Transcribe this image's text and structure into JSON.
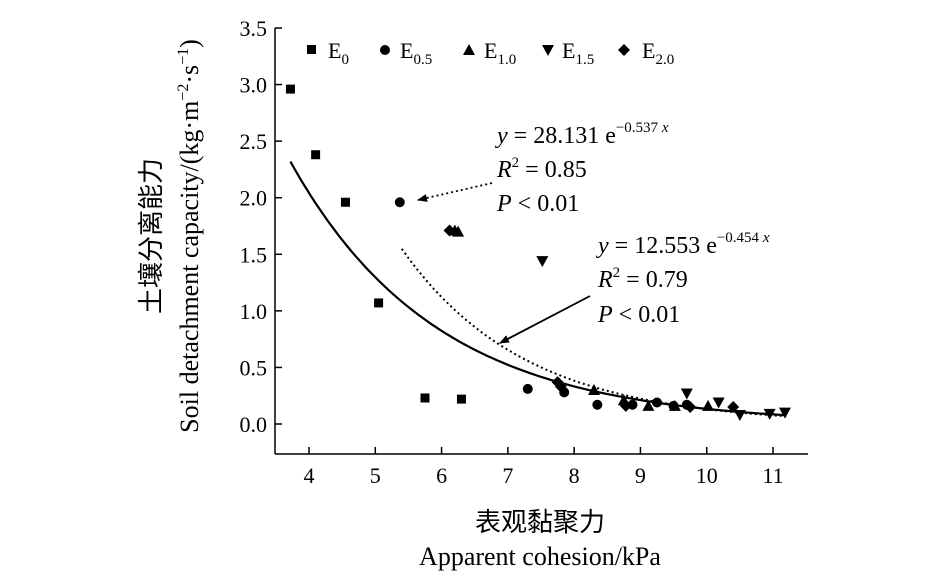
{
  "chart_data": {
    "type": "scatter",
    "xlabel_cn": "表观黏聚力",
    "xlabel_en": "Apparent cohesion/kPa",
    "ylabel_cn": "土壤分离能力",
    "ylabel_en_main": "Soil detachment capacity/(kg·m",
    "ylabel_en_sup1": "−2",
    "ylabel_en_mid": "·s",
    "ylabel_en_sup2": "−1",
    "ylabel_en_end": ")",
    "xlim": [
      3.5,
      11.5
    ],
    "ylim": [
      -0.25,
      3.5
    ],
    "x_ticks": [
      "4",
      "5",
      "6",
      "7",
      "8",
      "9",
      "10",
      "11"
    ],
    "y_ticks": [
      "0.0",
      "0.5",
      "1.0",
      "1.5",
      "2.0",
      "2.5",
      "3.0",
      "3.5"
    ],
    "legend": [
      {
        "base": "E",
        "sub": "0"
      },
      {
        "base": "E",
        "sub": "0.5"
      },
      {
        "base": "E",
        "sub": "1.0"
      },
      {
        "base": "E",
        "sub": "1.5"
      },
      {
        "base": "E",
        "sub": "2.0"
      }
    ],
    "series": [
      {
        "name": "E0",
        "marker": "square",
        "points": [
          [
            3.72,
            2.96
          ],
          [
            4.1,
            2.38
          ],
          [
            4.55,
            1.96
          ],
          [
            5.05,
            1.07
          ],
          [
            5.75,
            0.23
          ],
          [
            6.3,
            0.22
          ]
        ]
      },
      {
        "name": "E0.5",
        "marker": "circle",
        "points": [
          [
            5.37,
            1.96
          ],
          [
            7.3,
            0.31
          ],
          [
            7.85,
            0.28
          ],
          [
            8.35,
            0.17
          ],
          [
            8.88,
            0.17
          ],
          [
            9.25,
            0.19
          ],
          [
            9.5,
            0.16
          ],
          [
            9.7,
            0.17
          ]
        ]
      },
      {
        "name": "E1.0",
        "marker": "triangle-up",
        "points": [
          [
            6.2,
            1.71
          ],
          [
            6.25,
            1.7
          ],
          [
            8.3,
            0.3
          ],
          [
            8.75,
            0.21
          ],
          [
            9.12,
            0.16
          ],
          [
            9.52,
            0.16
          ],
          [
            10.02,
            0.16
          ]
        ]
      },
      {
        "name": "E1.5",
        "marker": "triangle-down",
        "points": [
          [
            7.52,
            1.44
          ],
          [
            9.7,
            0.27
          ],
          [
            10.18,
            0.19
          ],
          [
            10.5,
            0.08
          ],
          [
            10.95,
            0.09
          ],
          [
            11.18,
            0.1
          ]
        ]
      },
      {
        "name": "E2.0",
        "marker": "diamond",
        "points": [
          [
            6.12,
            1.71
          ],
          [
            7.75,
            0.37
          ],
          [
            7.8,
            0.33
          ],
          [
            8.78,
            0.16
          ],
          [
            9.75,
            0.15
          ],
          [
            10.4,
            0.15
          ]
        ]
      }
    ],
    "fits": [
      {
        "name": "dotted-fit",
        "style": "dotted",
        "a": 28.131,
        "b": -0.537,
        "x_range": [
          5.4,
          11.2
        ]
      },
      {
        "name": "solid-fit",
        "style": "solid",
        "a": 12.553,
        "b": -0.454,
        "x_range": [
          3.72,
          11.2
        ]
      }
    ],
    "annotations": [
      {
        "y_prefix": "y",
        "eq_mid": " = 28.131 e",
        "exponent": "−0.537 ",
        "exponent_var": "x",
        "r2_var": "R",
        "r2_sup": "2",
        "r2_value": " = 0.85",
        "p_var": "P",
        "p_value": " < 0.01"
      },
      {
        "y_prefix": "y",
        "eq_mid": " = 12.553 e",
        "exponent": "−0.454 ",
        "exponent_var": "x",
        "r2_var": "R",
        "r2_sup": "2",
        "r2_value": " = 0.79",
        "p_var": "P",
        "p_value": " < 0.01"
      }
    ]
  }
}
